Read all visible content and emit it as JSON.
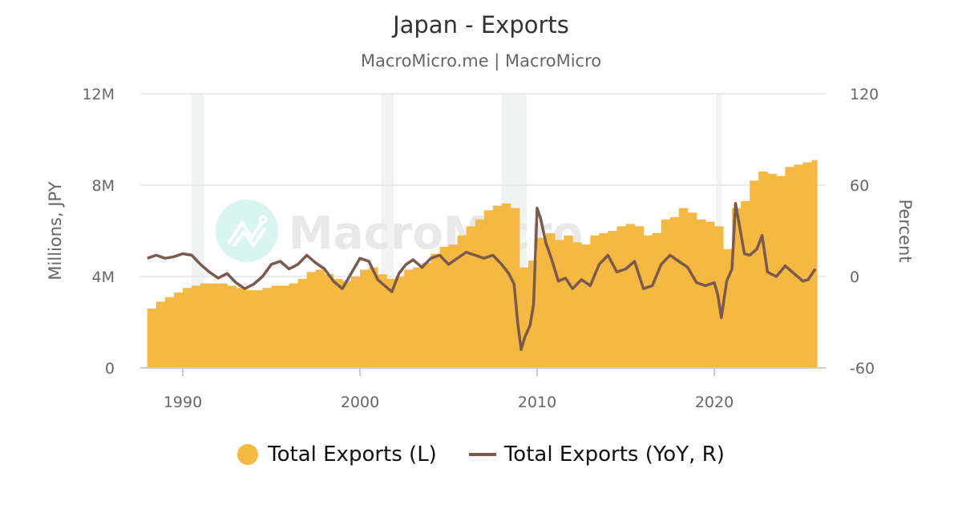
{
  "chart_data": {
    "type": "bar+line",
    "title": "Japan - Exports",
    "subtitle": "MacroMicro.me | MacroMicro",
    "watermark": "MacroMicro",
    "ylabel_left": "Millions, JPY",
    "ylabel_right": "Percent",
    "xlim": [
      1988,
      2025.8
    ],
    "ylim_left": [
      0,
      12
    ],
    "ylim_right": [
      -60,
      120
    ],
    "left_ticks": [
      "0",
      "4M",
      "8M",
      "12M"
    ],
    "left_tick_values": [
      0,
      4,
      8,
      12
    ],
    "right_ticks": [
      "-60",
      "0",
      "60",
      "120"
    ],
    "right_tick_values": [
      -60,
      0,
      60,
      120
    ],
    "x_ticks": [
      "1990",
      "2000",
      "2010",
      "2020"
    ],
    "x_tick_values": [
      1990,
      2000,
      2010,
      2020
    ],
    "grid": true,
    "legend_position": "bottom",
    "recessions": [
      [
        1990.5,
        1991.2
      ],
      [
        2001.2,
        2001.9
      ],
      [
        2008.0,
        2009.4
      ],
      [
        2020.1,
        2020.4
      ]
    ],
    "series": [
      {
        "name": "Total Exports (L)",
        "type": "bar",
        "axis": "left",
        "color": "#f5b942",
        "x": [
          1988,
          1988.5,
          1989,
          1989.5,
          1990,
          1990.5,
          1991,
          1991.5,
          1992,
          1992.5,
          1993,
          1993.5,
          1994,
          1994.5,
          1995,
          1995.5,
          1996,
          1996.5,
          1997,
          1997.5,
          1998,
          1998.5,
          1999,
          1999.5,
          2000,
          2000.5,
          2001,
          2001.5,
          2002,
          2002.5,
          2003,
          2003.5,
          2004,
          2004.5,
          2005,
          2005.5,
          2006,
          2006.5,
          2007,
          2007.5,
          2008,
          2008.5,
          2009,
          2009.5,
          2010,
          2010.5,
          2011,
          2011.5,
          2012,
          2012.5,
          2013,
          2013.5,
          2014,
          2014.5,
          2015,
          2015.5,
          2016,
          2016.5,
          2017,
          2017.5,
          2018,
          2018.5,
          2019,
          2019.5,
          2020,
          2020.5,
          2021,
          2021.5,
          2022,
          2022.5,
          2023,
          2023.5,
          2024,
          2024.5,
          2025,
          2025.5
        ],
        "values": [
          2.6,
          2.9,
          3.1,
          3.3,
          3.5,
          3.6,
          3.7,
          3.7,
          3.7,
          3.6,
          3.5,
          3.4,
          3.4,
          3.5,
          3.6,
          3.6,
          3.7,
          3.9,
          4.2,
          4.3,
          4.1,
          3.9,
          3.8,
          4.0,
          4.3,
          4.4,
          4.1,
          3.9,
          4.0,
          4.3,
          4.4,
          4.6,
          5.0,
          5.3,
          5.4,
          5.8,
          6.2,
          6.5,
          6.9,
          7.1,
          7.2,
          7.0,
          4.4,
          4.7,
          5.7,
          5.9,
          5.6,
          5.8,
          5.5,
          5.4,
          5.8,
          5.9,
          6.0,
          6.2,
          6.3,
          6.2,
          5.8,
          5.9,
          6.5,
          6.6,
          7.0,
          6.8,
          6.5,
          6.4,
          6.2,
          5.2,
          7.0,
          7.3,
          8.2,
          8.6,
          8.5,
          8.4,
          8.8,
          8.9,
          9.0,
          9.1
        ]
      },
      {
        "name": "Total Exports (YoY, R)",
        "type": "line",
        "axis": "right",
        "color": "#7b5a4e",
        "x": [
          1988,
          1988.5,
          1989,
          1989.5,
          1990,
          1990.5,
          1991,
          1991.5,
          1992,
          1992.5,
          1993,
          1993.5,
          1994,
          1994.5,
          1995,
          1995.5,
          1996,
          1996.5,
          1997,
          1997.5,
          1998,
          1998.5,
          1999,
          1999.5,
          2000,
          2000.5,
          2001,
          2001.4,
          2001.8,
          2002.2,
          2002.6,
          2003,
          2003.5,
          2004,
          2004.5,
          2005,
          2005.5,
          2006,
          2006.5,
          2007,
          2007.5,
          2008,
          2008.4,
          2008.7,
          2008.9,
          2009.1,
          2009.3,
          2009.6,
          2009.8,
          2010.0,
          2010.2,
          2010.5,
          2010.8,
          2011.2,
          2011.6,
          2012,
          2012.5,
          2013,
          2013.5,
          2014,
          2014.5,
          2015,
          2015.5,
          2016,
          2016.5,
          2017,
          2017.5,
          2018,
          2018.5,
          2019,
          2019.5,
          2020,
          2020.2,
          2020.4,
          2020.7,
          2021.0,
          2021.2,
          2021.4,
          2021.7,
          2022,
          2022.4,
          2022.7,
          2023,
          2023.5,
          2024,
          2024.5,
          2025,
          2025.3,
          2025.7
        ],
        "values": [
          12,
          14,
          12,
          13,
          15,
          14,
          8,
          3,
          -1,
          2,
          -4,
          -8,
          -5,
          0,
          8,
          10,
          5,
          8,
          14,
          9,
          5,
          -3,
          -8,
          2,
          12,
          10,
          -2,
          -6,
          -10,
          2,
          8,
          11,
          6,
          12,
          14,
          8,
          12,
          16,
          14,
          12,
          14,
          8,
          2,
          -5,
          -30,
          -48,
          -40,
          -32,
          -18,
          45,
          38,
          22,
          12,
          -3,
          -1,
          -8,
          -2,
          -6,
          8,
          14,
          3,
          5,
          10,
          -8,
          -6,
          8,
          14,
          10,
          6,
          -4,
          -6,
          -4,
          -12,
          -27,
          -3,
          5,
          48,
          35,
          15,
          14,
          18,
          27,
          3,
          0,
          7,
          2,
          -3,
          -2,
          5
        ]
      }
    ]
  }
}
